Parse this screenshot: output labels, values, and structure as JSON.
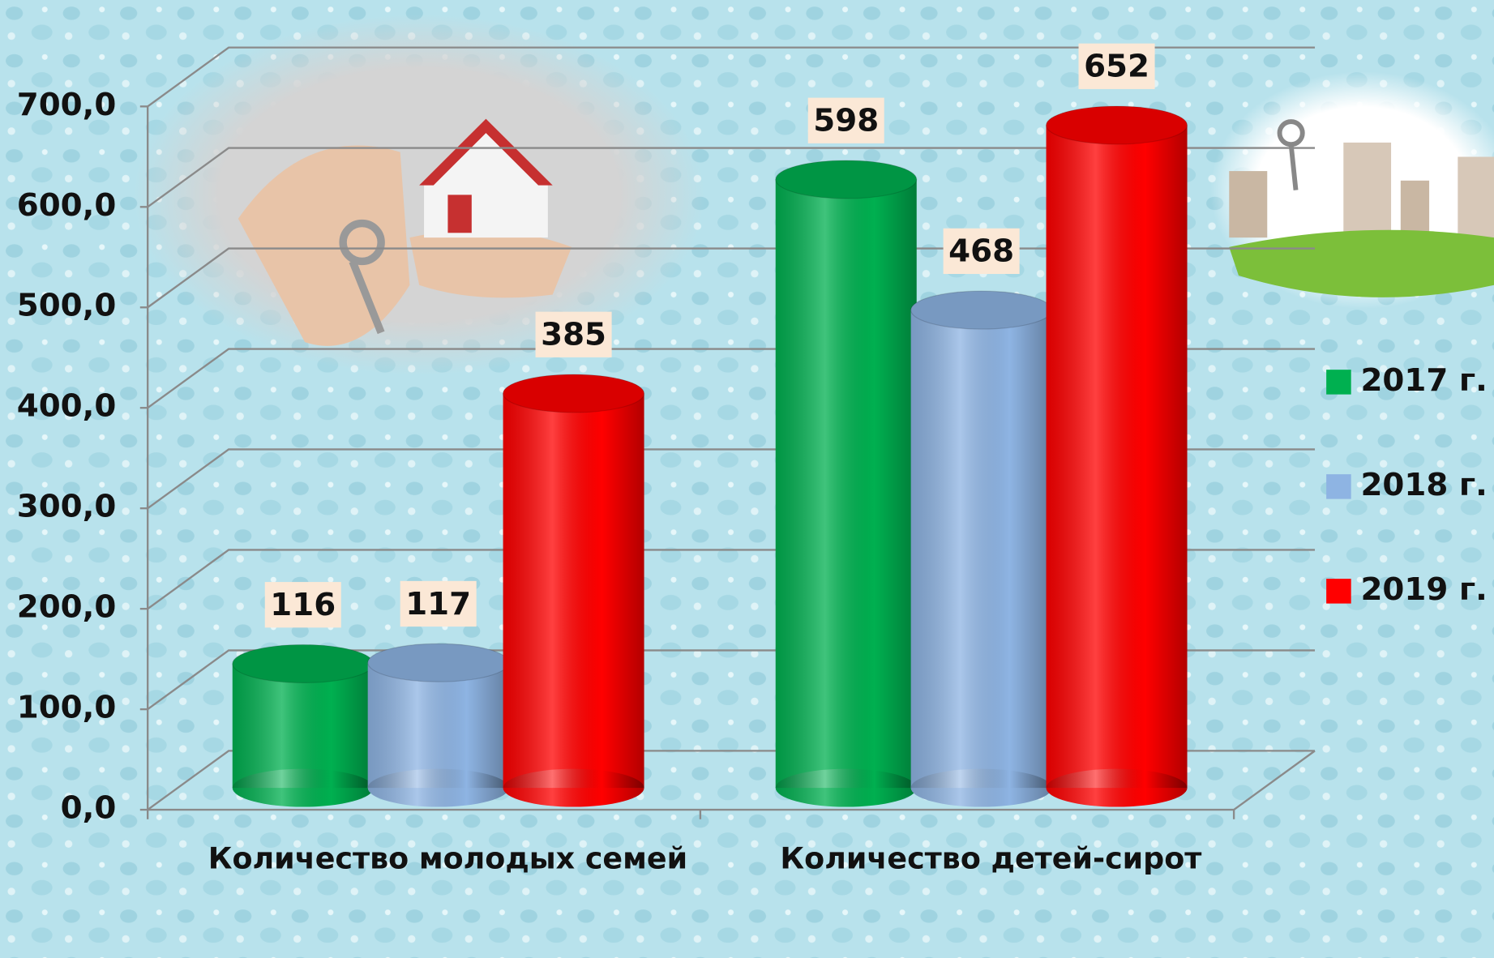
{
  "chart_data": {
    "type": "bar",
    "categories": [
      "Количество молодых семей",
      "Количество детей-сирот"
    ],
    "series": [
      {
        "name": "2017 г.",
        "color": "#00b050",
        "values": [
          116,
          598
        ]
      },
      {
        "name": "2018 г.",
        "color": "#8eb4e3",
        "values": [
          117,
          468
        ]
      },
      {
        "name": "2019 г.",
        "color": "#ff0000",
        "values": [
          385,
          652
        ]
      }
    ],
    "ylim": [
      0,
      700
    ],
    "yticks": [
      {
        "value": 0,
        "label": "0,0"
      },
      {
        "value": 100,
        "label": "100,0"
      },
      {
        "value": 200,
        "label": "200,0"
      },
      {
        "value": 300,
        "label": "300,0"
      },
      {
        "value": 400,
        "label": "400,0"
      },
      {
        "value": 500,
        "label": "500,0"
      },
      {
        "value": 600,
        "label": "600,0"
      },
      {
        "value": 700,
        "label": "700,0"
      }
    ],
    "grid": true,
    "legend": "right"
  }
}
